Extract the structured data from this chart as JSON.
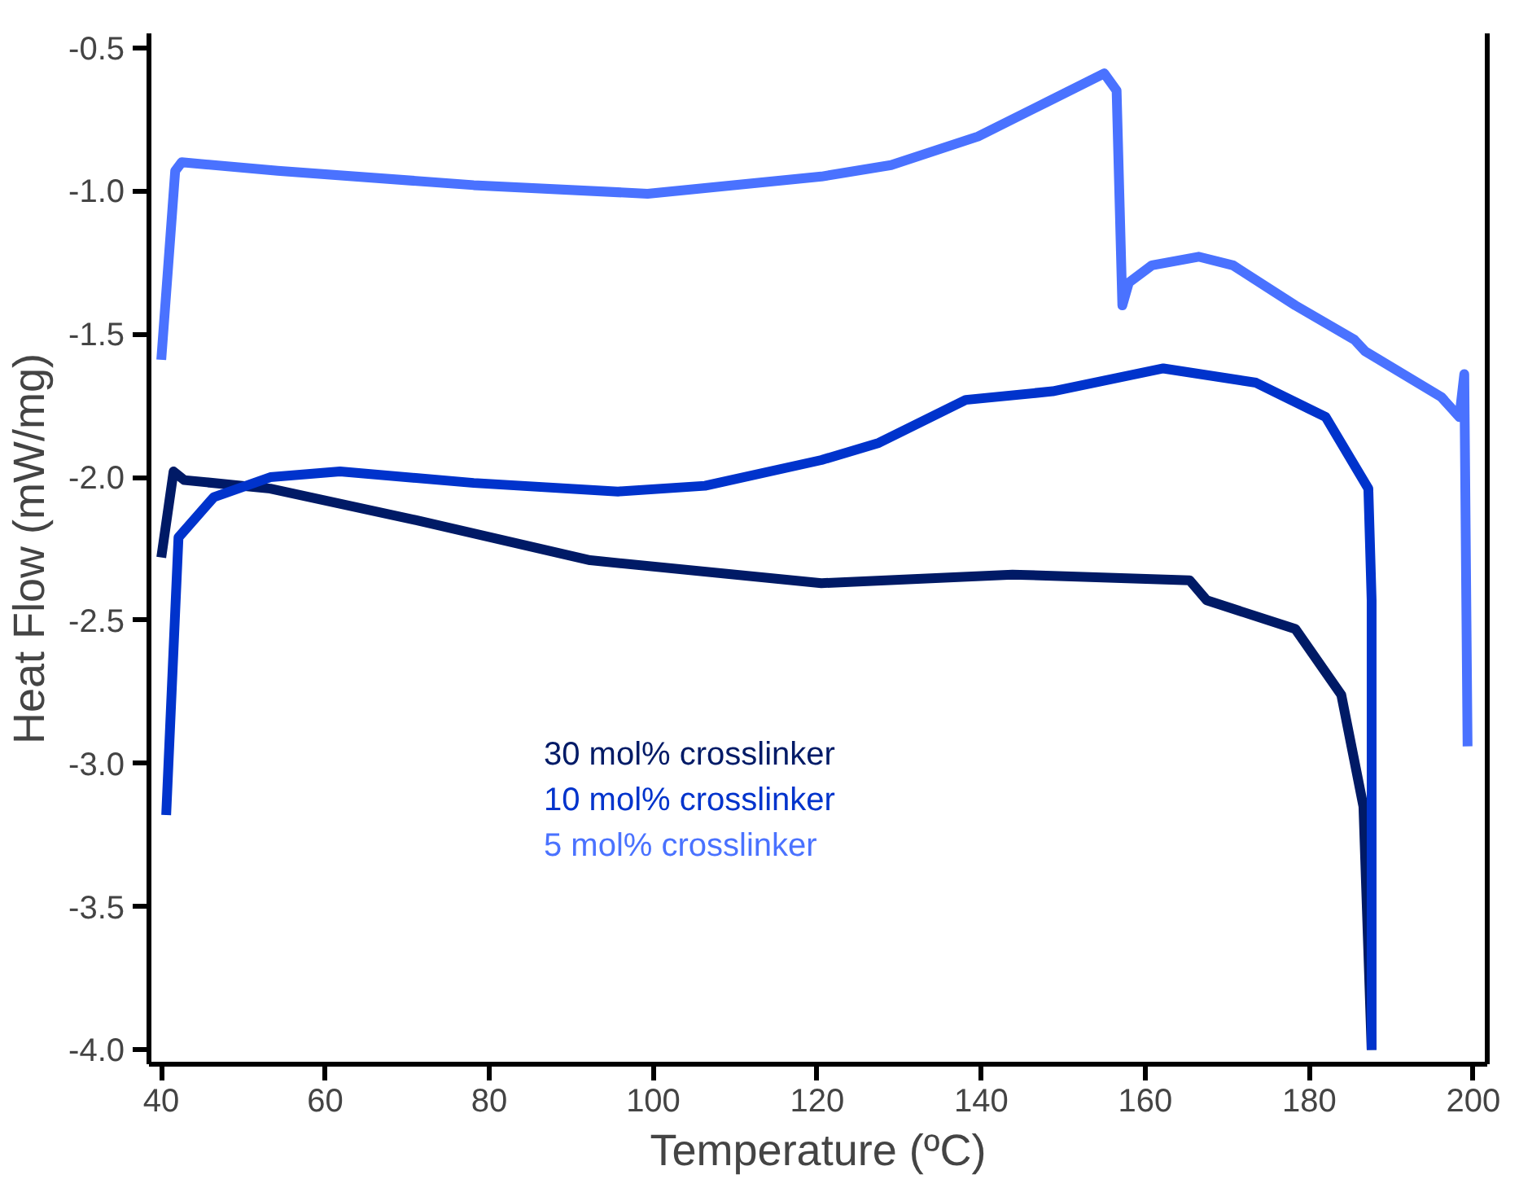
{
  "chart_data": {
    "type": "line",
    "xlabel": "Temperature (ºC)",
    "ylabel": "Heat Flow (mW/mg)",
    "xlim": [
      38.5,
      201.7
    ],
    "ylim": [
      -4.05,
      -0.45
    ],
    "xticks": [
      40,
      60,
      80,
      100,
      120,
      140,
      160,
      180,
      200
    ],
    "yticks": [
      {
        "value": -4.0,
        "label": "-4.0"
      },
      {
        "value": -3.5,
        "label": "-3.5"
      },
      {
        "value": -3.0,
        "label": "-3.0"
      },
      {
        "value": -2.5,
        "label": "-2.5"
      },
      {
        "value": -2.0,
        "label": "-2.0"
      },
      {
        "value": -1.5,
        "label": "-1.5"
      },
      {
        "value": -1.0,
        "label": "-1.0"
      },
      {
        "value": -0.5,
        "label": "-0.5"
      }
    ],
    "grid": false,
    "legend": "center",
    "marker": "none",
    "line_style": "solid",
    "series": [
      {
        "name": "30 mol% crosslinker",
        "color": "#001a66",
        "x": [
          40.0,
          41.5,
          42.8,
          53.3,
          71.1,
          92.3,
          120.5,
          143.8,
          165.4,
          167.5,
          178.3,
          183.9,
          186.6,
          187.6
        ],
        "values": [
          -2.28,
          -1.98,
          -2.01,
          -2.04,
          -2.15,
          -2.29,
          -2.37,
          -2.34,
          -2.36,
          -2.43,
          -2.53,
          -2.76,
          -3.15,
          -4.0
        ]
      },
      {
        "name": "10 mol% crosslinker",
        "color": "#0033cc",
        "x": [
          40.6,
          42.1,
          46.4,
          53.3,
          61.8,
          78.1,
          95.7,
          106.3,
          120.5,
          127.5,
          138.1,
          148.7,
          162.2,
          173.5,
          182.0,
          187.2,
          187.6,
          187.6
        ],
        "values": [
          -3.18,
          -2.21,
          -2.07,
          -2.0,
          -1.98,
          -2.02,
          -2.05,
          -2.03,
          -1.94,
          -1.88,
          -1.73,
          -1.7,
          -1.62,
          -1.67,
          -1.79,
          -2.04,
          -2.43,
          -4.0
        ]
      },
      {
        "name": "5 mol% crosslinker",
        "color": "#4a72ff",
        "x": [
          40.0,
          41.7,
          42.5,
          54.2,
          78.1,
          99.3,
          120.5,
          129.0,
          139.6,
          148.0,
          155.0,
          156.5,
          157.2,
          158.0,
          160.8,
          166.5,
          170.7,
          178.3,
          185.5,
          186.8,
          196.1,
          198.3,
          198.9,
          199.3
        ],
        "values": [
          -1.59,
          -0.93,
          -0.9,
          -0.93,
          -0.98,
          -1.01,
          -0.95,
          -0.91,
          -0.81,
          -0.69,
          -0.59,
          -0.65,
          -1.4,
          -1.32,
          -1.26,
          -1.23,
          -1.26,
          -1.4,
          -1.52,
          -1.56,
          -1.72,
          -1.79,
          -1.64,
          -2.94
        ]
      }
    ]
  }
}
